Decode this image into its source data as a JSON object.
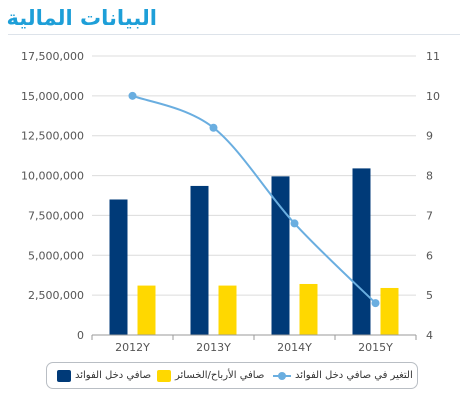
{
  "title": "البيانات المالية",
  "colors": {
    "bar_dark": "#003a78",
    "bar_yellow": "#ffd800",
    "line": "#6aaee0",
    "grid": "#dcdcdc",
    "title": "#1e9fd8"
  },
  "chart_data": {
    "type": "bar",
    "categories": [
      "2012Y",
      "2013Y",
      "2014Y",
      "2015Y"
    ],
    "y_left": {
      "ylim": [
        0,
        17500000
      ],
      "ticks": [
        "0",
        "2,500,000",
        "5,000,000",
        "7,500,000",
        "10,000,000",
        "12,500,000",
        "15,000,000",
        "17,500,000"
      ]
    },
    "y_right": {
      "ylim": [
        4,
        11
      ],
      "ticks": [
        "4",
        "5",
        "6",
        "7",
        "8",
        "9",
        "10",
        "11"
      ]
    },
    "grid": true,
    "legend_position": "bottom",
    "series": [
      {
        "name": "صافي دخل الفوائد",
        "type": "bar",
        "axis": "left",
        "color": "#003a78",
        "values": [
          8500000,
          9350000,
          9950000,
          10450000
        ]
      },
      {
        "name": "صافي الأرباح/الخسائر",
        "type": "bar",
        "axis": "left",
        "color": "#ffd800",
        "values": [
          3100000,
          3100000,
          3200000,
          2950000
        ]
      },
      {
        "name": "التغير في صافي دخل الفوائد",
        "type": "line",
        "axis": "right",
        "color": "#6aaee0",
        "values": [
          10.0,
          9.2,
          6.8,
          4.8
        ]
      }
    ]
  }
}
